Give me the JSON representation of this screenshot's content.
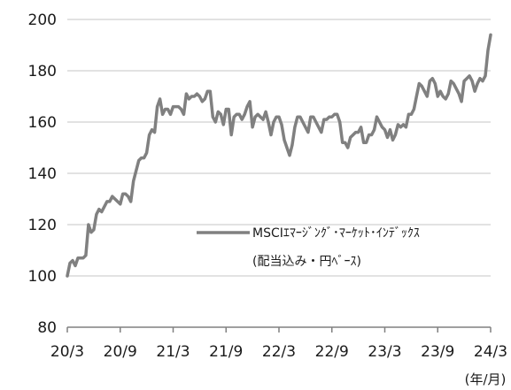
{
  "chart_data": {
    "type": "line",
    "title": "",
    "xlabel": "",
    "ylabel": "",
    "x_unit_label": "(年/月)",
    "ylim": [
      80,
      200
    ],
    "yticks": [
      80,
      100,
      120,
      140,
      160,
      180,
      200
    ],
    "xticks": [
      "20/3",
      "20/9",
      "21/3",
      "21/9",
      "22/3",
      "22/9",
      "23/3",
      "23/9",
      "24/3"
    ],
    "grid": true,
    "legend_position": "right-middle",
    "colors": {
      "line": "#808080",
      "grid": "#d9d9d9",
      "axis": "#808080"
    },
    "series": [
      {
        "name": "MSCIｴﾏｰｼﾞﾝｸﾞ･ﾏｰｹｯﾄ･ｲﾝﾃﾞｯｸｽ",
        "legend_line2": "(配当込み・円ﾍﾞｰｽ)",
        "x": [
          0,
          0.05,
          0.1,
          0.15,
          0.2,
          0.25,
          0.3,
          0.35,
          0.4,
          0.45,
          0.5,
          0.55,
          0.6,
          0.65,
          0.7,
          0.75,
          0.8,
          0.85,
          0.9,
          0.95,
          1,
          1.05,
          1.1,
          1.15,
          1.2,
          1.25,
          1.3,
          1.35,
          1.4,
          1.45,
          1.5,
          1.55,
          1.6,
          1.65,
          1.7,
          1.75,
          1.8,
          1.85,
          1.9,
          1.95,
          2,
          2.05,
          2.1,
          2.15,
          2.2,
          2.25,
          2.3,
          2.35,
          2.4,
          2.45,
          2.5,
          2.55,
          2.6,
          2.65,
          2.7,
          2.75,
          2.8,
          2.85,
          2.9,
          2.95,
          3,
          3.05,
          3.1,
          3.15,
          3.2,
          3.25,
          3.3,
          3.35,
          3.4,
          3.45,
          3.5,
          3.55,
          3.6,
          3.65,
          3.7,
          3.75,
          3.8,
          3.85,
          3.9,
          3.95,
          4,
          4.05,
          4.1,
          4.15,
          4.2,
          4.25,
          4.3,
          4.35,
          4.4,
          4.45,
          4.5,
          4.55,
          4.6,
          4.65,
          4.7,
          4.75,
          4.8,
          4.85,
          4.9,
          4.95,
          5,
          5.05,
          5.1,
          5.15,
          5.2,
          5.25,
          5.3,
          5.35,
          5.4,
          5.45,
          5.5,
          5.55,
          5.6,
          5.65,
          5.7,
          5.75,
          5.8,
          5.85,
          5.9,
          5.95,
          6,
          6.05,
          6.1,
          6.15,
          6.2,
          6.25,
          6.3,
          6.35,
          6.4,
          6.45,
          6.5,
          6.55,
          6.6,
          6.65,
          6.7,
          6.75,
          6.8,
          6.85,
          6.9,
          6.95,
          7,
          7.05,
          7.1,
          7.15,
          7.2,
          7.25,
          7.3,
          7.35,
          7.4,
          7.45,
          7.5,
          7.55,
          7.6,
          7.65,
          7.7,
          7.75,
          7.8,
          7.85,
          7.9,
          7.95,
          8
        ],
        "values": [
          100,
          105,
          106,
          104,
          107,
          107,
          107,
          108,
          120,
          117,
          118,
          124,
          126,
          125,
          127,
          129,
          129,
          131,
          130,
          129,
          128,
          132,
          132,
          131,
          129,
          137,
          141,
          145,
          146,
          146,
          148,
          155,
          157,
          156,
          166,
          169,
          163,
          165,
          165,
          163,
          166,
          166,
          166,
          165,
          163,
          171,
          169,
          170,
          170,
          171,
          170,
          168,
          169,
          172,
          172,
          162,
          160,
          164,
          163,
          159,
          165,
          165,
          155,
          162,
          163,
          163,
          161,
          163,
          166,
          168,
          158,
          162,
          163,
          162,
          161,
          164,
          160,
          155,
          160,
          162,
          162,
          159,
          153,
          150,
          147,
          151,
          158,
          162,
          162,
          160,
          158,
          156,
          162,
          162,
          160,
          158,
          156,
          161,
          161,
          162,
          162,
          163,
          163,
          160,
          152,
          152,
          150,
          154,
          155,
          156,
          156,
          158,
          152,
          152,
          155,
          155,
          157,
          162,
          160,
          158,
          157,
          154,
          157,
          153,
          155,
          159,
          158,
          159,
          158,
          163,
          163,
          165,
          170,
          175,
          174,
          172,
          170,
          176,
          177,
          175,
          170,
          172,
          170,
          169,
          171,
          176,
          175,
          173,
          171,
          168,
          176,
          177,
          178,
          176,
          172,
          175,
          177,
          176,
          178,
          188,
          194
        ]
      }
    ]
  }
}
